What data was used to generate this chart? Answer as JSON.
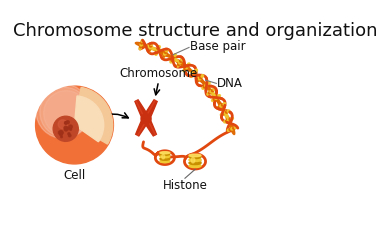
{
  "title": "Chromosome structure and organization",
  "title_fontsize": 13,
  "title_color": "#111111",
  "background_color": "#ffffff",
  "labels": {
    "cell": "Cell",
    "chromosome": "Chromosome",
    "histone": "Histone",
    "dna": "DNA",
    "base_pair": "Base pair"
  },
  "colors": {
    "cell_outer": "#f07038",
    "cell_inner": "#f5c898",
    "cell_inner2": "#f8ddb8",
    "nucleus": "#c04828",
    "nucleus_spot": "#a03018",
    "chromosome": "#c83010",
    "chr_highlight": "#e04828",
    "dna_strand": "#e04810",
    "dna_rung_orange": "#e06800",
    "dna_rung_yellow": "#f0c830",
    "histone_gold": "#c89000",
    "histone_yellow": "#f0c830",
    "histone_bright": "#ffe060",
    "label_line": "#888888"
  },
  "figsize": [
    3.9,
    2.4
  ],
  "dpi": 100
}
